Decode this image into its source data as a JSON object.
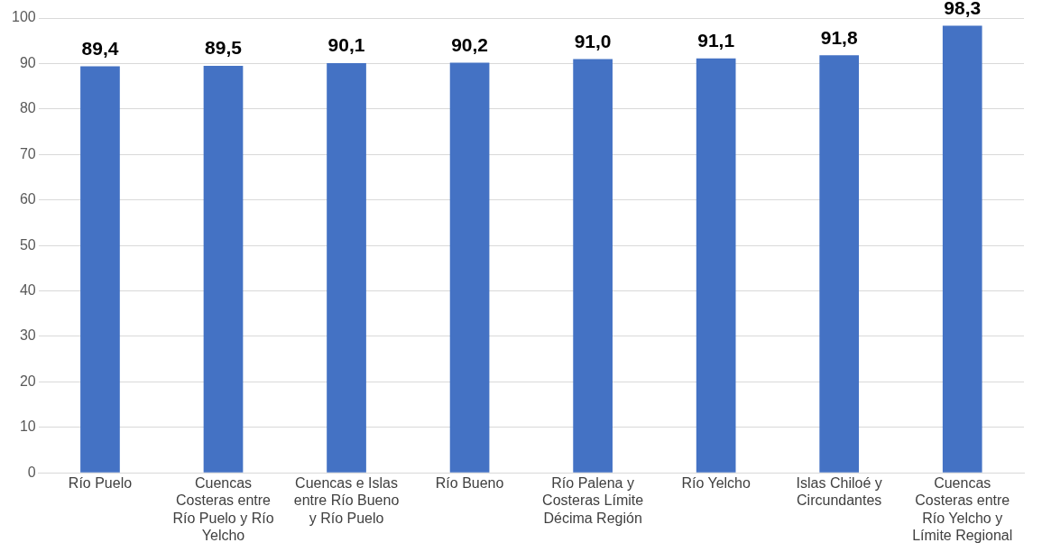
{
  "chart_data": {
    "type": "bar",
    "categories": [
      "Río Puelo",
      "Cuencas Costeras entre Río Puelo y Río Yelcho",
      "Cuencas e Islas entre Río Bueno y Río Puelo",
      "Río Bueno",
      "Río Palena y Costeras Límite Décima Región",
      "Río Yelcho",
      "Islas Chiloé y Circundantes",
      "Cuencas Costeras entre Río Yelcho y Límite Regional"
    ],
    "values": [
      89.4,
      89.5,
      90.1,
      90.2,
      91.0,
      91.1,
      91.8,
      98.3
    ],
    "value_labels": [
      "89,4",
      "89,5",
      "90,1",
      "90,2",
      "91,0",
      "91,1",
      "91,8",
      "98,3"
    ],
    "color": "#4472c4",
    "ylim": [
      0,
      100
    ],
    "yticks": [
      0,
      10,
      20,
      30,
      40,
      50,
      60,
      70,
      80,
      90,
      100
    ],
    "grid": "y",
    "legend": false
  }
}
